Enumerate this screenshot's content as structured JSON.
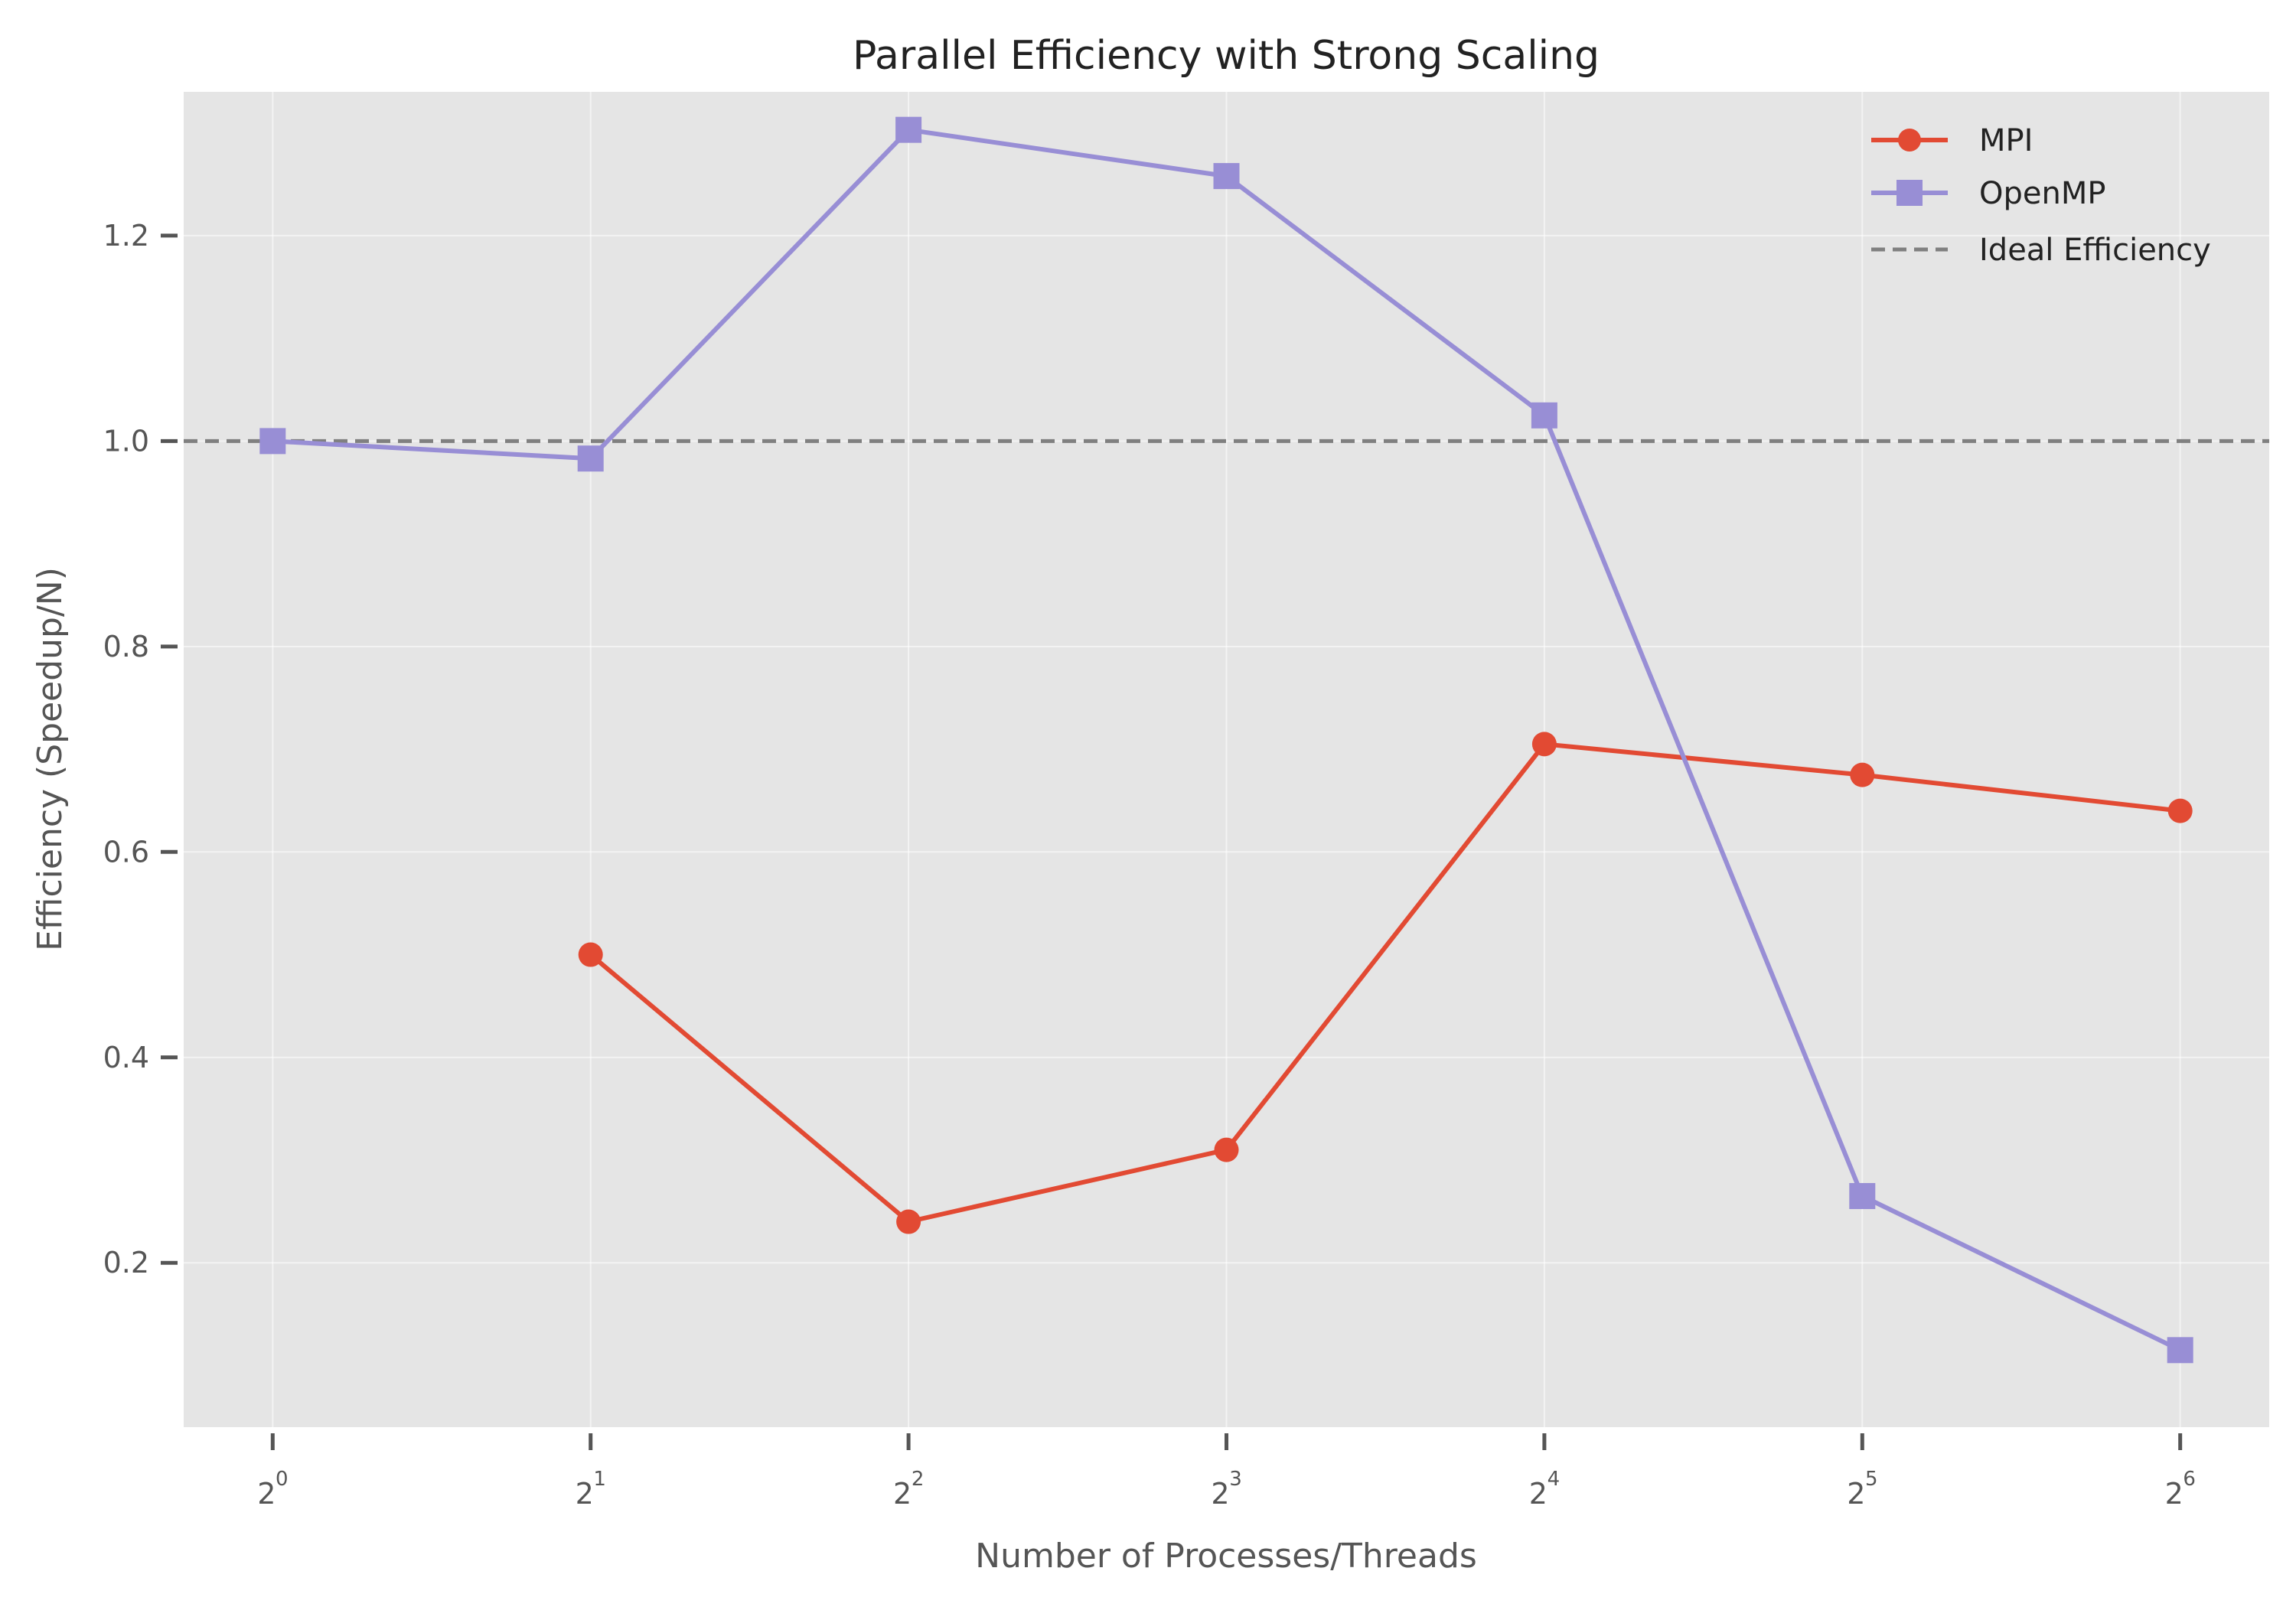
{
  "chart_data": {
    "type": "line",
    "title": "Parallel Efficiency with Strong Scaling",
    "xlabel": "Number of Processes/Threads",
    "ylabel": "Efficiency (Speedup/N)",
    "x_scale": "log2",
    "x_ticks": [
      {
        "base": "2",
        "exp": "0",
        "value": 1
      },
      {
        "base": "2",
        "exp": "1",
        "value": 2
      },
      {
        "base": "2",
        "exp": "2",
        "value": 4
      },
      {
        "base": "2",
        "exp": "3",
        "value": 8
      },
      {
        "base": "2",
        "exp": "4",
        "value": 16
      },
      {
        "base": "2",
        "exp": "5",
        "value": 32
      },
      {
        "base": "2",
        "exp": "6",
        "value": 64
      }
    ],
    "y_ticks": [
      "0.2",
      "0.4",
      "0.6",
      "0.8",
      "1.0",
      "1.2"
    ],
    "xlim_log2": [
      -0.28,
      6.28
    ],
    "ylim": [
      0.04,
      1.34
    ],
    "grid": true,
    "legend_position": "upper-right",
    "series": [
      {
        "name": "MPI",
        "color": "#E24A33",
        "marker": "circle",
        "x": [
          2,
          4,
          8,
          16,
          32,
          64
        ],
        "y": [
          0.5,
          0.24,
          0.31,
          0.705,
          0.675,
          0.64
        ]
      },
      {
        "name": "OpenMP",
        "color": "#988ED5",
        "marker": "square",
        "x": [
          1,
          2,
          4,
          8,
          16,
          32,
          64
        ],
        "y": [
          1.0,
          0.983,
          1.303,
          1.258,
          1.025,
          0.265,
          0.115
        ]
      }
    ],
    "reference_line": {
      "name": "Ideal Efficiency",
      "y": 1.0,
      "color": "#808080",
      "style": "dashed"
    }
  }
}
